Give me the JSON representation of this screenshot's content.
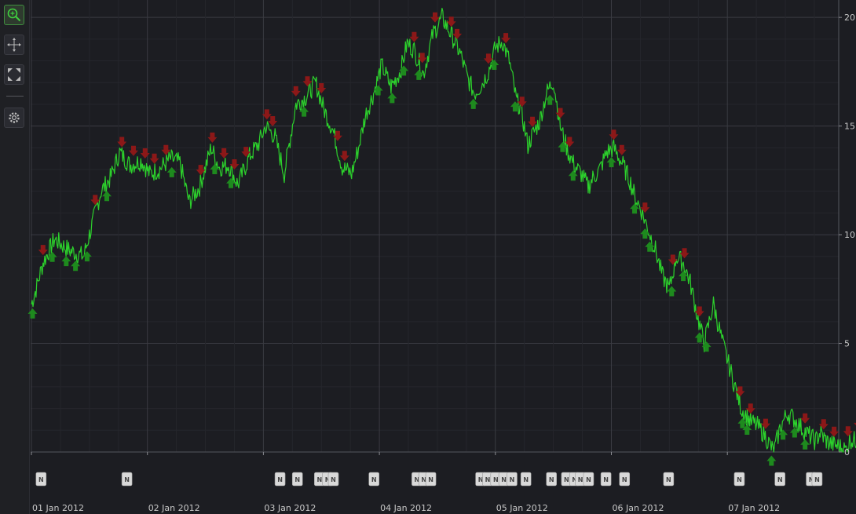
{
  "toolbar": {
    "tools": [
      {
        "name": "zoom",
        "icon": "zoom-icon",
        "active": true
      },
      {
        "name": "pan",
        "icon": "pan-icon",
        "active": false
      },
      {
        "name": "zoom-extents",
        "icon": "zoom-extents-icon",
        "active": false
      },
      {
        "name": "settings",
        "icon": "gear-icon",
        "active": false
      }
    ]
  },
  "colors": {
    "background": "#1c1d22",
    "line": "#2cd12c",
    "buy_arrow": "#1e8a1e",
    "sell_arrow": "#8c1818",
    "news_badge": "#d9d9d9",
    "grid_major": "#3a3b42",
    "grid_minor": "#25262c"
  },
  "chart_data": {
    "type": "line",
    "title": "",
    "xlabel": "",
    "ylabel": "",
    "xlim": [
      "2012-01-01",
      "2012-01-08"
    ],
    "ylim": [
      0,
      20.8
    ],
    "y_axis_position": "right",
    "yticks": [
      0,
      5,
      10,
      15,
      20
    ],
    "xticks": [
      "01 Jan 2012",
      "02 Jan 2012",
      "03 Jan 2012",
      "04 Jan 2012",
      "05 Jan 2012",
      "06 Jan 2012",
      "07 Jan 2012"
    ],
    "grid": true,
    "series": [
      {
        "type": "line",
        "x_days": [
          0,
          0.04,
          0.1,
          0.2,
          0.32,
          0.45,
          0.6,
          0.68,
          0.76,
          0.85,
          0.95,
          1.02,
          1.1,
          1.2,
          1.28,
          1.36,
          1.45,
          1.55,
          1.62,
          1.7,
          1.78,
          1.88,
          1.96,
          2.02,
          2.1,
          2.18,
          2.28,
          2.36,
          2.45,
          2.52,
          2.6,
          2.68,
          2.76,
          2.82,
          2.88,
          2.95,
          3.02,
          3.1,
          3.18,
          3.24,
          3.3,
          3.38,
          3.46,
          3.54,
          3.62,
          3.7,
          3.76,
          3.82,
          3.88,
          3.94,
          4.0,
          4.06,
          4.12,
          4.18,
          4.22,
          4.28,
          4.32,
          4.38,
          4.44,
          4.5,
          4.56,
          4.62,
          4.68,
          4.74,
          4.8,
          4.84,
          4.9,
          4.96,
          5.02,
          5.1,
          5.16,
          5.2,
          5.26,
          5.32,
          5.38,
          5.44,
          5.5,
          5.56,
          5.62,
          5.68,
          5.74,
          5.8,
          5.88,
          5.96,
          6.04,
          6.12,
          6.2,
          6.26,
          6.32,
          6.4,
          6.46,
          6.52,
          6.58,
          6.64,
          6.7,
          6.76,
          6.8,
          6.84,
          6.88,
          6.94,
          6.98,
          7.02,
          7.06,
          7.1,
          7.14,
          7.2,
          7.26
        ],
        "y": [
          6.8,
          7.5,
          8.7,
          9.8,
          9.3,
          9.0,
          12.0,
          12.6,
          13.8,
          13.2,
          13.4,
          12.8,
          13.0,
          13.5,
          13.3,
          11.5,
          12.2,
          14.0,
          13.1,
          13.2,
          12.3,
          13.6,
          14.2,
          15.0,
          14.5,
          12.8,
          16.0,
          16.3,
          17.0,
          15.8,
          14.8,
          13.1,
          12.8,
          14.0,
          15.5,
          16.5,
          17.8,
          16.8,
          17.5,
          18.8,
          18.5,
          17.4,
          19.2,
          20.0,
          19.2,
          18.3,
          17.2,
          16.5,
          16.9,
          17.5,
          18.6,
          18.9,
          18.0,
          16.2,
          15.8,
          14.1,
          14.6,
          15.2,
          16.5,
          17.1,
          15.0,
          13.9,
          13.2,
          12.8,
          12.2,
          12.6,
          13.0,
          13.8,
          14.0,
          13.2,
          12.5,
          11.8,
          11.1,
          10.2,
          9.3,
          8.1,
          7.5,
          9.0,
          8.7,
          7.8,
          6.3,
          5.0,
          6.8,
          5.0,
          3.5,
          2.0,
          1.4,
          1.2,
          0.8,
          0.0,
          1.2,
          1.8,
          1.5,
          1.1,
          0.8,
          0.5,
          0.9,
          0.6,
          0.4,
          0.3,
          0.2,
          0.1,
          0.6,
          0.5,
          0.8,
          0.7,
          0.9
        ]
      }
    ],
    "buy_signals": [
      0.01,
      0.18,
      0.3,
      0.38,
      0.48,
      0.65,
      1.21,
      1.58,
      1.72,
      2.35,
      2.99,
      3.11,
      3.21,
      3.34,
      3.81,
      3.99,
      4.17,
      4.47,
      4.58,
      4.67,
      5.0,
      5.2,
      5.29,
      5.33,
      5.52,
      5.62,
      5.76,
      5.82,
      6.13,
      6.17,
      6.38,
      6.48,
      6.58,
      6.67
    ],
    "sell_signals": [
      0.1,
      0.55,
      0.78,
      0.88,
      0.98,
      1.06,
      1.16,
      1.46,
      1.56,
      1.66,
      1.75,
      1.85,
      2.03,
      2.08,
      2.28,
      2.38,
      2.5,
      2.64,
      2.7,
      3.3,
      3.37,
      3.48,
      3.62,
      3.67,
      3.94,
      4.09,
      4.23,
      4.32,
      4.56,
      4.64,
      5.02,
      5.09,
      5.29,
      5.53,
      5.63,
      5.76,
      6.11,
      6.2,
      6.33,
      6.67,
      6.83,
      6.92,
      7.04,
      7.13
    ],
    "news_events": [
      0.08,
      0.82,
      2.14,
      2.29,
      2.48,
      2.55,
      2.6,
      2.95,
      3.32,
      3.38,
      3.44,
      3.87,
      3.93,
      4.0,
      4.07,
      4.14,
      4.26,
      4.48,
      4.61,
      4.68,
      4.73,
      4.8,
      4.95,
      5.11,
      5.49,
      6.1,
      6.45,
      6.72,
      6.77
    ]
  }
}
